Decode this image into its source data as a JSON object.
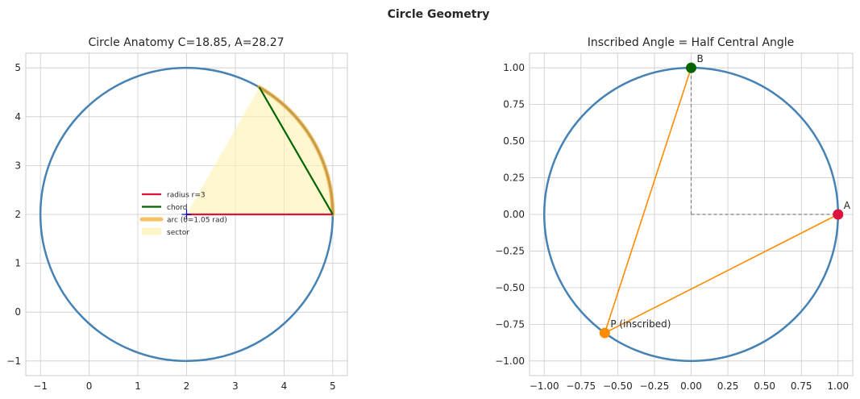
{
  "figure_title": "Circle Geometry",
  "colors": {
    "circle": "#4682b4",
    "radius": "#dc143c",
    "chord": "#006400",
    "arc": "#f5a623",
    "sector": "#fff2b0",
    "inscribed_lines": "#ff8c00",
    "point_A": "#dc143c",
    "point_B": "#006400",
    "point_P": "#ff8c00",
    "center_marker": "#0000cc",
    "dashed": "#808080",
    "grid": "#cccccc"
  },
  "chart_data": [
    {
      "type": "line",
      "title": "Circle Anatomy C=18.85, A=28.27",
      "xlim": [
        -1.3,
        5.3
      ],
      "ylim": [
        -1.3,
        5.3
      ],
      "xticks": [
        -1,
        0,
        1,
        2,
        3,
        4,
        5
      ],
      "yticks": [
        -1,
        0,
        1,
        2,
        3,
        4,
        5
      ],
      "xtick_labels": [
        "−1",
        "0",
        "1",
        "2",
        "3",
        "4",
        "5"
      ],
      "ytick_labels": [
        "−1",
        "0",
        "1",
        "2",
        "3",
        "4",
        "5"
      ],
      "circle": {
        "center": [
          2,
          2
        ],
        "radius": 3
      },
      "angle_rad": 1.05,
      "radius_line": {
        "from": [
          2,
          2
        ],
        "to": [
          5,
          2
        ]
      },
      "chord": {
        "from": [
          5,
          2
        ],
        "to": [
          3.5,
          4.6
        ]
      },
      "center_marker": [
        2,
        2
      ],
      "legend": {
        "location": "center",
        "entries": [
          {
            "label": "radius r=3",
            "kind": "radius"
          },
          {
            "label": "chord",
            "kind": "chord"
          },
          {
            "label": "arc (θ=1.05 rad)",
            "kind": "arc"
          },
          {
            "label": "sector",
            "kind": "sector"
          }
        ]
      }
    },
    {
      "type": "scatter",
      "title": "Inscribed Angle = Half Central Angle",
      "xlim": [
        -1.1,
        1.1
      ],
      "ylim": [
        -1.1,
        1.1
      ],
      "xticks": [
        -1.0,
        -0.75,
        -0.5,
        -0.25,
        0.0,
        0.25,
        0.5,
        0.75,
        1.0
      ],
      "yticks": [
        -1.0,
        -0.75,
        -0.5,
        -0.25,
        0.0,
        0.25,
        0.5,
        0.75,
        1.0
      ],
      "xtick_labels": [
        "−1.00",
        "−0.75",
        "−0.50",
        "−0.25",
        "0.00",
        "0.25",
        "0.50",
        "0.75",
        "1.00"
      ],
      "ytick_labels": [
        "−1.00",
        "−0.75",
        "−0.50",
        "−0.25",
        "0.00",
        "0.25",
        "0.50",
        "0.75",
        "1.00"
      ],
      "circle": {
        "center": [
          0,
          0
        ],
        "radius": 1
      },
      "points": [
        {
          "name": "A",
          "x": 1.0,
          "y": 0.0,
          "label": "A",
          "kind": "point_A"
        },
        {
          "name": "B",
          "x": 0.0,
          "y": 1.0,
          "label": "B",
          "kind": "point_B"
        },
        {
          "name": "P",
          "x": -0.588,
          "y": -0.809,
          "label": "P (inscribed)",
          "kind": "point_P"
        }
      ],
      "inscribed_lines": [
        {
          "from": "P",
          "to": "A"
        },
        {
          "from": "P",
          "to": "B"
        }
      ],
      "central_dashed": [
        {
          "from": [
            0,
            0
          ],
          "to": [
            1,
            0
          ]
        },
        {
          "from": [
            0,
            0
          ],
          "to": [
            0,
            1
          ]
        }
      ]
    }
  ]
}
